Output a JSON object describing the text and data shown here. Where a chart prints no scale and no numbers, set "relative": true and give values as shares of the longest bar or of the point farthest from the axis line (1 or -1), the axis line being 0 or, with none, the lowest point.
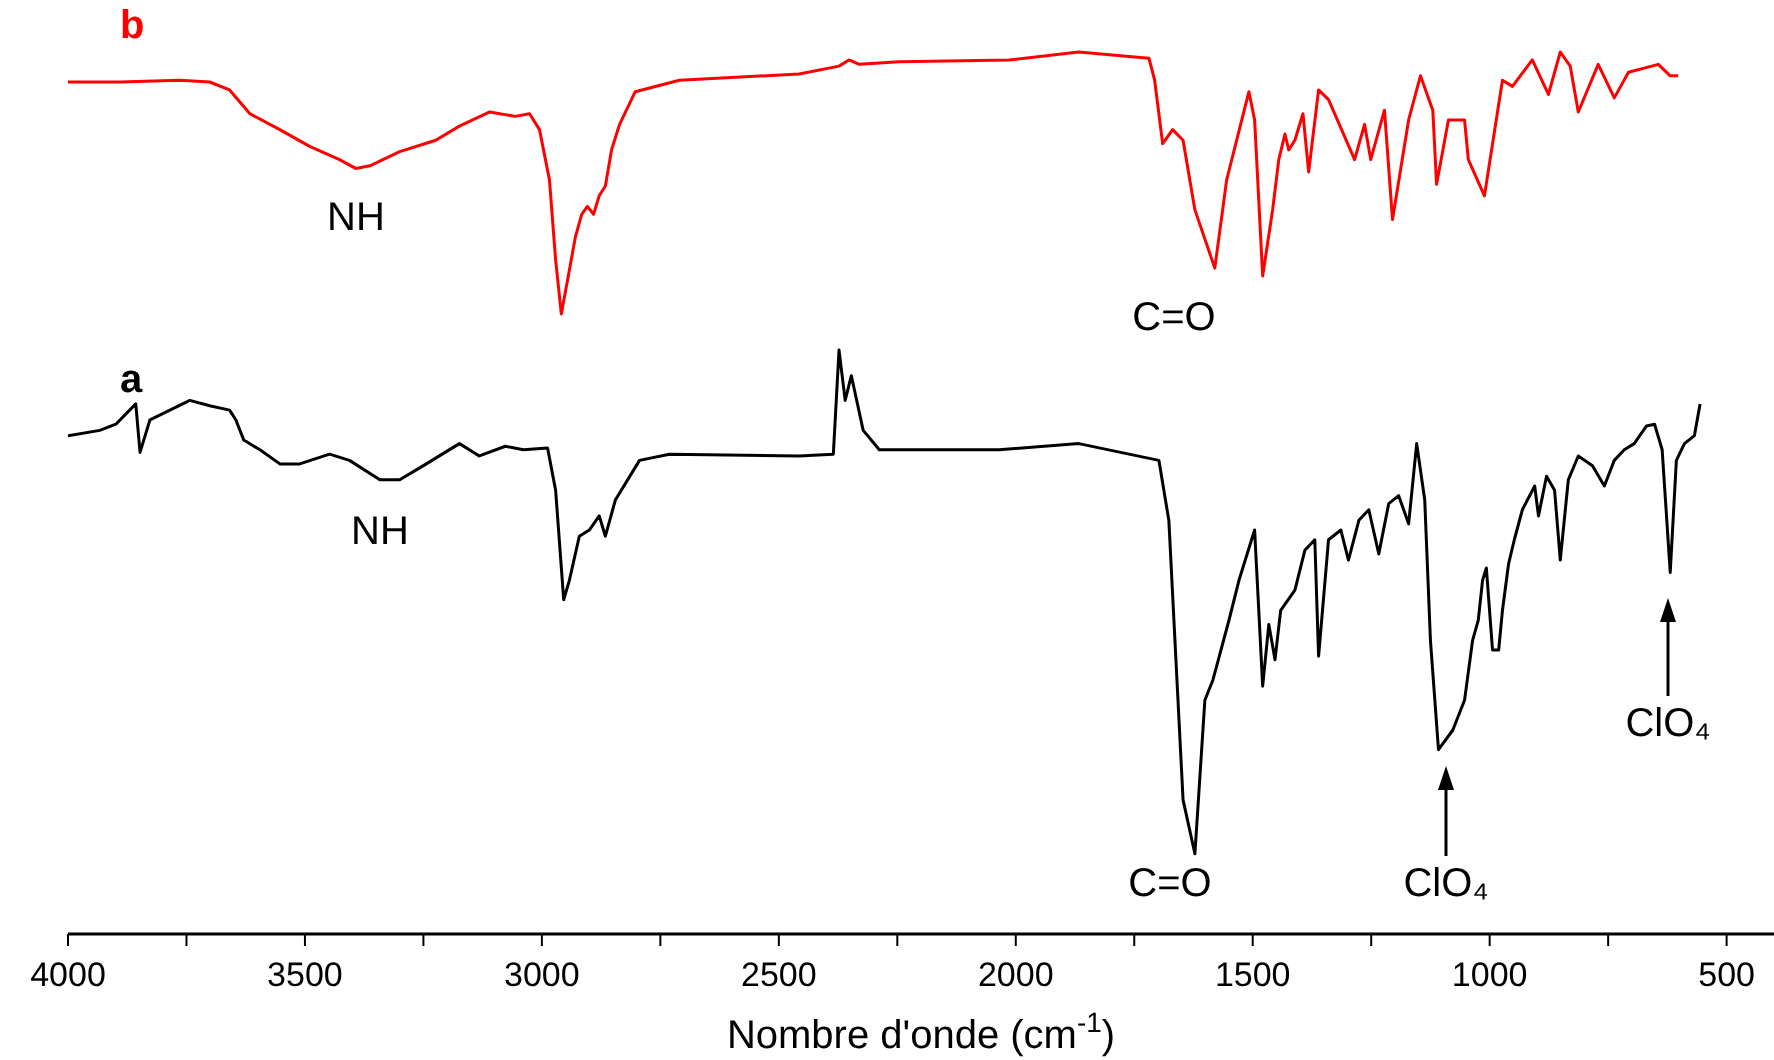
{
  "chart_data": {
    "type": "line",
    "relative": true,
    "xlabel": "Nombre d'onde (cm$^{-1}$)",
    "xlim": [
      4000,
      400
    ],
    "xticks": [
      4000,
      {
        "value": 3750,
        "label": null
      },
      3500,
      {
        "value": 3250,
        "label": null
      },
      3000,
      {
        "value": 2750,
        "label": null
      },
      2500,
      {
        "value": 2250,
        "label": null
      },
      2000,
      {
        "value": 1750,
        "label": null
      },
      1500,
      {
        "value": 1250,
        "label": null
      },
      1000,
      {
        "value": 750,
        "label": null
      },
      500
    ],
    "marker": "none",
    "line_style": "solid",
    "series": [
      {
        "name": "b",
        "color": "#ff0000",
        "x": [
          4000,
          3890,
          3764,
          3701,
          3659,
          3616,
          3553,
          3490,
          3427,
          3393,
          3363,
          3300,
          3224,
          3174,
          3110,
          3056,
          3026,
          3005,
          2984,
          2971,
          2959,
          2946,
          2929,
          2916,
          2904,
          2891,
          2879,
          2866,
          2853,
          2836,
          2803,
          2710,
          2457,
          2373,
          2352,
          2330,
          2246,
          2014,
          1867,
          1719,
          1707,
          1690,
          1669,
          1647,
          1622,
          1580,
          1555,
          1508,
          1496,
          1479,
          1458,
          1445,
          1432,
          1424,
          1411,
          1394,
          1382,
          1361,
          1340,
          1285,
          1264,
          1251,
          1222,
          1205,
          1171,
          1146,
          1120,
          1112,
          1087,
          1053,
          1045,
          1011,
          973,
          952,
          910,
          876,
          851,
          830,
          813,
          771,
          737,
          707,
          644,
          619,
          602
        ],
        "values": [
          0.966,
          0.966,
          0.968,
          0.966,
          0.957,
          0.93,
          0.912,
          0.893,
          0.878,
          0.868,
          0.871,
          0.887,
          0.9,
          0.916,
          0.932,
          0.927,
          0.93,
          0.912,
          0.855,
          0.764,
          0.703,
          0.741,
          0.791,
          0.816,
          0.825,
          0.816,
          0.837,
          0.848,
          0.889,
          0.918,
          0.955,
          0.968,
          0.975,
          0.984,
          0.991,
          0.986,
          0.989,
          0.991,
          1.0,
          0.993,
          0.968,
          0.896,
          0.912,
          0.9,
          0.821,
          0.755,
          0.855,
          0.955,
          0.923,
          0.746,
          0.821,
          0.878,
          0.907,
          0.889,
          0.9,
          0.93,
          0.864,
          0.957,
          0.946,
          0.878,
          0.918,
          0.878,
          0.934,
          0.81,
          0.923,
          0.973,
          0.934,
          0.85,
          0.923,
          0.923,
          0.878,
          0.837,
          0.968,
          0.961,
          0.991,
          0.952,
          1.0,
          0.984,
          0.932,
          0.986,
          0.948,
          0.977,
          0.986,
          0.973,
          0.973
        ]
      },
      {
        "name": "a",
        "color": "#000000",
        "x": [
          4000,
          3933,
          3899,
          3857,
          3848,
          3827,
          3785,
          3743,
          3701,
          3659,
          3646,
          3629,
          3595,
          3553,
          3511,
          3448,
          3406,
          3342,
          3300,
          3250,
          3174,
          3132,
          3077,
          3039,
          2988,
          2971,
          2954,
          2942,
          2921,
          2900,
          2879,
          2866,
          2845,
          2794,
          2731,
          2457,
          2385,
          2373,
          2360,
          2347,
          2322,
          2288,
          2035,
          1867,
          1698,
          1677,
          1647,
          1622,
          1601,
          1584,
          1576,
          1550,
          1529,
          1496,
          1479,
          1466,
          1453,
          1441,
          1411,
          1390,
          1369,
          1361,
          1340,
          1314,
          1298,
          1276,
          1255,
          1234,
          1213,
          1192,
          1171,
          1154,
          1137,
          1125,
          1108,
          1078,
          1053,
          1036,
          1024,
          1015,
          1007,
          994,
          981,
          973,
          960,
          948,
          931,
          905,
          897,
          880,
          863,
          851,
          834,
          813,
          783,
          758,
          737,
          716,
          695,
          669,
          652,
          636,
          619,
          606,
          589,
          568,
          556
        ],
        "values": [
          0.565,
          0.571,
          0.578,
          0.601,
          0.546,
          0.583,
          0.594,
          0.605,
          0.599,
          0.594,
          0.583,
          0.56,
          0.549,
          0.533,
          0.533,
          0.544,
          0.537,
          0.515,
          0.515,
          0.531,
          0.556,
          0.542,
          0.553,
          0.549,
          0.551,
          0.503,
          0.379,
          0.401,
          0.451,
          0.458,
          0.474,
          0.451,
          0.492,
          0.537,
          0.544,
          0.542,
          0.544,
          0.662,
          0.605,
          0.633,
          0.571,
          0.549,
          0.549,
          0.556,
          0.537,
          0.469,
          0.152,
          0.091,
          0.265,
          0.288,
          0.304,
          0.356,
          0.401,
          0.458,
          0.281,
          0.351,
          0.311,
          0.367,
          0.39,
          0.435,
          0.447,
          0.315,
          0.447,
          0.458,
          0.424,
          0.469,
          0.481,
          0.431,
          0.488,
          0.497,
          0.465,
          0.556,
          0.492,
          0.333,
          0.209,
          0.231,
          0.265,
          0.333,
          0.356,
          0.401,
          0.415,
          0.322,
          0.322,
          0.367,
          0.42,
          0.447,
          0.481,
          0.508,
          0.474,
          0.519,
          0.503,
          0.424,
          0.515,
          0.542,
          0.531,
          0.508,
          0.537,
          0.549,
          0.556,
          0.576,
          0.578,
          0.549,
          0.41,
          0.537,
          0.556,
          0.565,
          0.601
        ]
      }
    ],
    "annotations": [
      "NH",
      "NH",
      "C=O",
      "C=O",
      "ClO₄",
      "ClO₄"
    ]
  }
}
